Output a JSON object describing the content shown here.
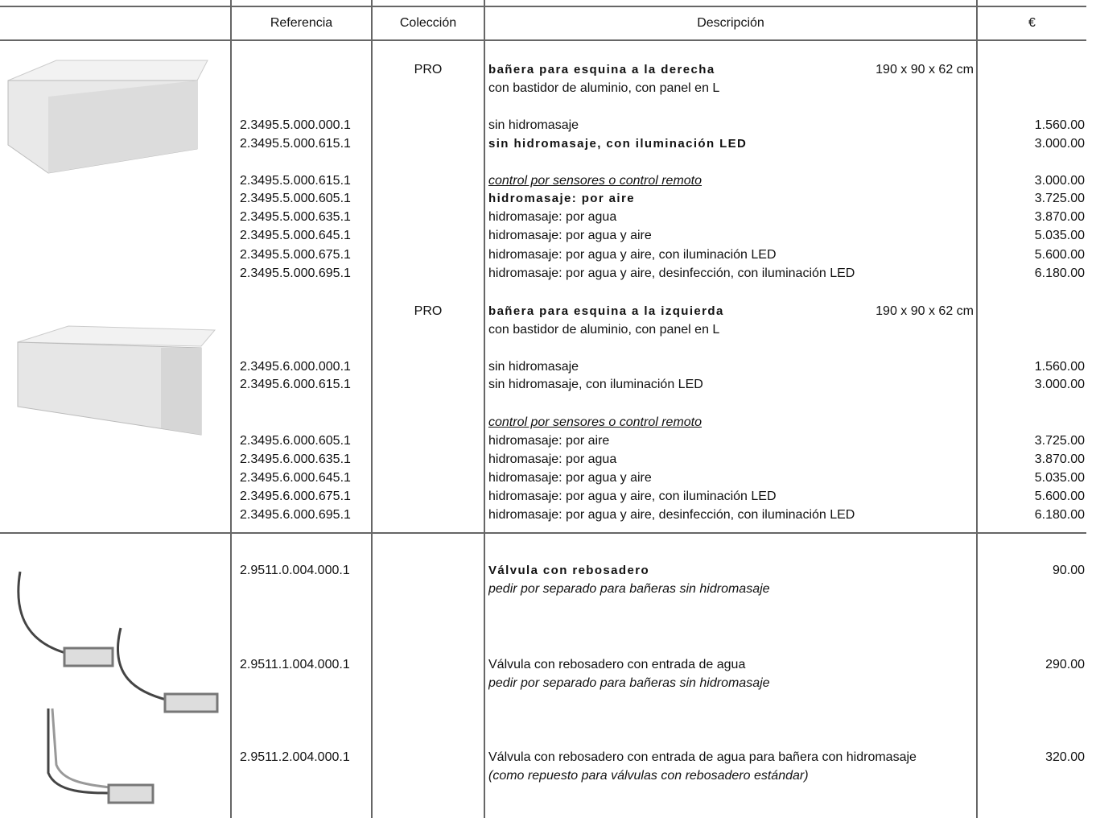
{
  "table": {
    "header": [
      "Referencia",
      "Colección",
      "Descripción",
      "€"
    ],
    "rows": [
      {
        "collection": "PRO",
        "description": "bañera para esquina a la derecha",
        "size": "190 x 90 x 62 cm",
        "style": "bold"
      },
      {
        "description": "con bastidor de aluminio, con panel en L"
      },
      {
        "ref": "2.3495.5.000.000.1",
        "description": "sin hidromasaje",
        "price": "1.560.00"
      },
      {
        "ref": "2.3495.5.000.615.1",
        "description": "sin hidromasaje, con iluminación LED",
        "price": "3.000.00",
        "style": "bold"
      },
      {
        "ref": "2.3495.5.000.615.1",
        "description": "control por sensores o control remoto",
        "price": "3.000.00",
        "style": "underline-italic"
      },
      {
        "ref": "2.3495.5.000.605.1",
        "description": "hidromasaje: por aire",
        "price": "3.725.00",
        "style": "bold"
      },
      {
        "ref": "2.3495.5.000.635.1",
        "description": "hidromasaje: por agua",
        "price": "3.870.00"
      },
      {
        "ref": "2.3495.5.000.645.1",
        "description": "hidromasaje: por agua y aire",
        "price": "5.035.00"
      },
      {
        "ref": "2.3495.5.000.675.1",
        "description": "hidromasaje: por agua y aire, con iluminación LED",
        "price": "5.600.00"
      },
      {
        "ref": "2.3495.5.000.695.1",
        "description": "hidromasaje: por agua y aire, desinfección, con iluminación LED",
        "price": "6.180.00"
      },
      {
        "collection": "PRO",
        "description": "bañera para esquina a la izquierda",
        "size": "190 x 90 x 62 cm",
        "style": "bold"
      },
      {
        "description": "con bastidor de aluminio, con panel en L"
      },
      {
        "ref": "2.3495.6.000.000.1",
        "description": "sin hidromasaje",
        "price": "1.560.00"
      },
      {
        "ref": "2.3495.6.000.615.1",
        "description": "sin hidromasaje, con iluminación LED",
        "price": "3.000.00"
      },
      {
        "description": "control por sensores o control remoto",
        "style": "underline-italic"
      },
      {
        "ref": "2.3495.6.000.605.1",
        "description": "hidromasaje: por aire",
        "price": "3.725.00"
      },
      {
        "ref": "2.3495.6.000.635.1",
        "description": "hidromasaje: por agua",
        "price": "3.870.00"
      },
      {
        "ref": "2.3495.6.000.645.1",
        "description": "hidromasaje: por agua y aire",
        "price": "5.035.00"
      },
      {
        "ref": "2.3495.6.000.675.1",
        "description": "hidromasaje: por agua y aire, con iluminación LED",
        "price": "5.600.00"
      },
      {
        "ref": "2.3495.6.000.695.1",
        "description": "hidromasaje: por agua y aire, desinfección, con iluminación LED",
        "price": "6.180.00"
      },
      {
        "ref": "2.9511.0.004.000.1",
        "description": "Válvula con rebosadero",
        "price": "90.00",
        "style": "bold"
      },
      {
        "description": "pedir por separado para bañeras sin hidromasaje",
        "style": "italic"
      },
      {
        "ref": "2.9511.1.004.000.1",
        "description": "Válvula con rebosadero con entrada de agua",
        "price": "290.00"
      },
      {
        "description": "pedir por separado para bañeras sin hidromasaje",
        "style": "italic"
      },
      {
        "ref": "2.9511.2.004.000.1",
        "description": "Válvula con rebosadero con entrada de agua para bañera con hidromasaje",
        "price": "320.00"
      },
      {
        "description": "(como repuesto para válvulas con rebosadero estándar)",
        "style": "italic"
      }
    ]
  }
}
